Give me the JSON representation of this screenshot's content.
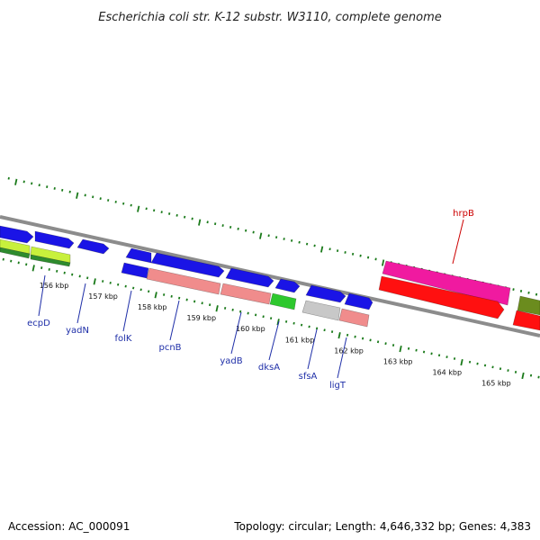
{
  "title": "Escherichia coli str. K-12 substr. W3110, complete genome",
  "colors": {
    "backbone": "#8c8c8c",
    "tick": "#1a7a1a",
    "gene_label": "#1f2fa8",
    "highlight_label": "#cc0000",
    "blue": "#1a14e6",
    "salmon": "#f08c8c",
    "green": "#2ec82e",
    "lime": "#c8f03c",
    "darkgreen": "#2e8b2e",
    "olive": "#6b8c1e",
    "grey": "#c8c8c8",
    "red": "#ff1010",
    "magenta": "#f01aa0"
  },
  "kbp_ticks": [
    {
      "kbp": 156,
      "label": "156 kbp"
    },
    {
      "kbp": 157,
      "label": "157 kbp"
    },
    {
      "kbp": 158,
      "label": "158 kbp"
    },
    {
      "kbp": 159,
      "label": "159 kbp"
    },
    {
      "kbp": 160,
      "label": "160 kbp"
    },
    {
      "kbp": 161,
      "label": "161 kbp"
    },
    {
      "kbp": 162,
      "label": "162 kbp"
    },
    {
      "kbp": 163,
      "label": "163 kbp"
    },
    {
      "kbp": 164,
      "label": "164 kbp"
    },
    {
      "kbp": 165,
      "label": "165 kbp"
    }
  ],
  "genes": [
    {
      "name": "ecpD",
      "color_key": "gene_label"
    },
    {
      "name": "yadN",
      "color_key": "gene_label"
    },
    {
      "name": "folK",
      "color_key": "gene_label"
    },
    {
      "name": "pcnB",
      "color_key": "gene_label"
    },
    {
      "name": "yadB",
      "color_key": "gene_label"
    },
    {
      "name": "dksA",
      "color_key": "gene_label"
    },
    {
      "name": "sfsA",
      "color_key": "gene_label"
    },
    {
      "name": "ligT",
      "color_key": "gene_label"
    },
    {
      "name": "hrpB",
      "color_key": "highlight_label"
    }
  ],
  "footer": {
    "accession": "Accession: AC_000091",
    "summary": "Topology: circular; Length: 4,646,332 bp; Genes: 4,383"
  }
}
